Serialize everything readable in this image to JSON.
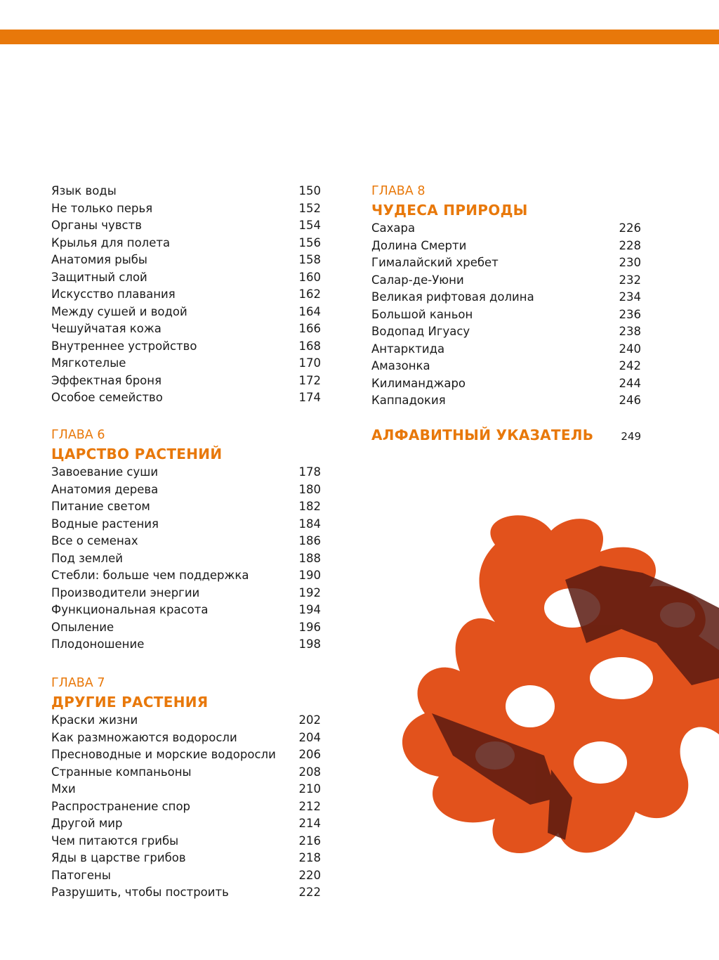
{
  "accent_color": "#e8780a",
  "left_top_entries": [
    {
      "title": "Язык воды",
      "page": "150"
    },
    {
      "title": "Не только перья",
      "page": "152"
    },
    {
      "title": "Органы чувств",
      "page": "154"
    },
    {
      "title": "Крылья для полета",
      "page": "156"
    },
    {
      "title": "Анатомия рыбы",
      "page": "158"
    },
    {
      "title": "Защитный слой",
      "page": "160"
    },
    {
      "title": "Искусство плавания",
      "page": "162"
    },
    {
      "title": "Между сушей и водой",
      "page": "164"
    },
    {
      "title": "Чешуйчатая кожа",
      "page": "166"
    },
    {
      "title": "Внутреннее устройство",
      "page": "168"
    },
    {
      "title": "Мягкотелые",
      "page": "170"
    },
    {
      "title": "Эффектная броня",
      "page": "172"
    },
    {
      "title": "Особое семейство",
      "page": "174"
    }
  ],
  "chapter6": {
    "label": "ГЛАВА 6",
    "title": "ЦАРСТВО РАСТЕНИЙ",
    "entries": [
      {
        "title": "Завоевание суши",
        "page": "178"
      },
      {
        "title": "Анатомия дерева",
        "page": "180"
      },
      {
        "title": "Питание светом",
        "page": "182"
      },
      {
        "title": "Водные растения",
        "page": "184"
      },
      {
        "title": "Все о семенах",
        "page": "186"
      },
      {
        "title": "Под землей",
        "page": "188"
      },
      {
        "title": "Стебли: больше чем поддержка",
        "page": "190"
      },
      {
        "title": "Производители энергии",
        "page": "192"
      },
      {
        "title": "Функциональная красота",
        "page": "194"
      },
      {
        "title": "Опыление",
        "page": "196"
      },
      {
        "title": "Плодоношение",
        "page": "198"
      }
    ]
  },
  "chapter7": {
    "label": "ГЛАВА 7",
    "title": "ДРУГИЕ РАСТЕНИЯ",
    "entries": [
      {
        "title": "Краски жизни",
        "page": "202"
      },
      {
        "title": "Как размножаются водоросли",
        "page": "204"
      },
      {
        "title": "Пресноводные и морские водоросли",
        "page": "206"
      },
      {
        "title": "Странные компаньоны",
        "page": "208"
      },
      {
        "title": "Мхи",
        "page": "210"
      },
      {
        "title": "Распространение спор",
        "page": "212"
      },
      {
        "title": "Другой мир",
        "page": "214"
      },
      {
        "title": "Чем питаются грибы",
        "page": "216"
      },
      {
        "title": "Яды в царстве грибов",
        "page": "218"
      },
      {
        "title": "Патогены",
        "page": "220"
      },
      {
        "title": "Разрушить, чтобы построить",
        "page": "222"
      }
    ]
  },
  "chapter8": {
    "label": "ГЛАВА 8",
    "title": "ЧУДЕСА ПРИРОДЫ",
    "entries": [
      {
        "title": "Сахара",
        "page": "226"
      },
      {
        "title": "Долина Смерти",
        "page": "228"
      },
      {
        "title": "Гималайский хребет",
        "page": "230"
      },
      {
        "title": "Салар-де-Уюни",
        "page": "232"
      },
      {
        "title": "Великая рифтовая долина",
        "page": "234"
      },
      {
        "title": "Большой каньон",
        "page": "236"
      },
      {
        "title": "Водопад Игуасу",
        "page": "238"
      },
      {
        "title": "Антарктида",
        "page": "240"
      },
      {
        "title": "Амазонка",
        "page": "242"
      },
      {
        "title": "Килиманджаро",
        "page": "244"
      },
      {
        "title": "Каппадокия",
        "page": "246"
      }
    ]
  },
  "index": {
    "title": "АЛФАВИТНЫЙ УКАЗАТЕЛЬ",
    "page": "249"
  }
}
